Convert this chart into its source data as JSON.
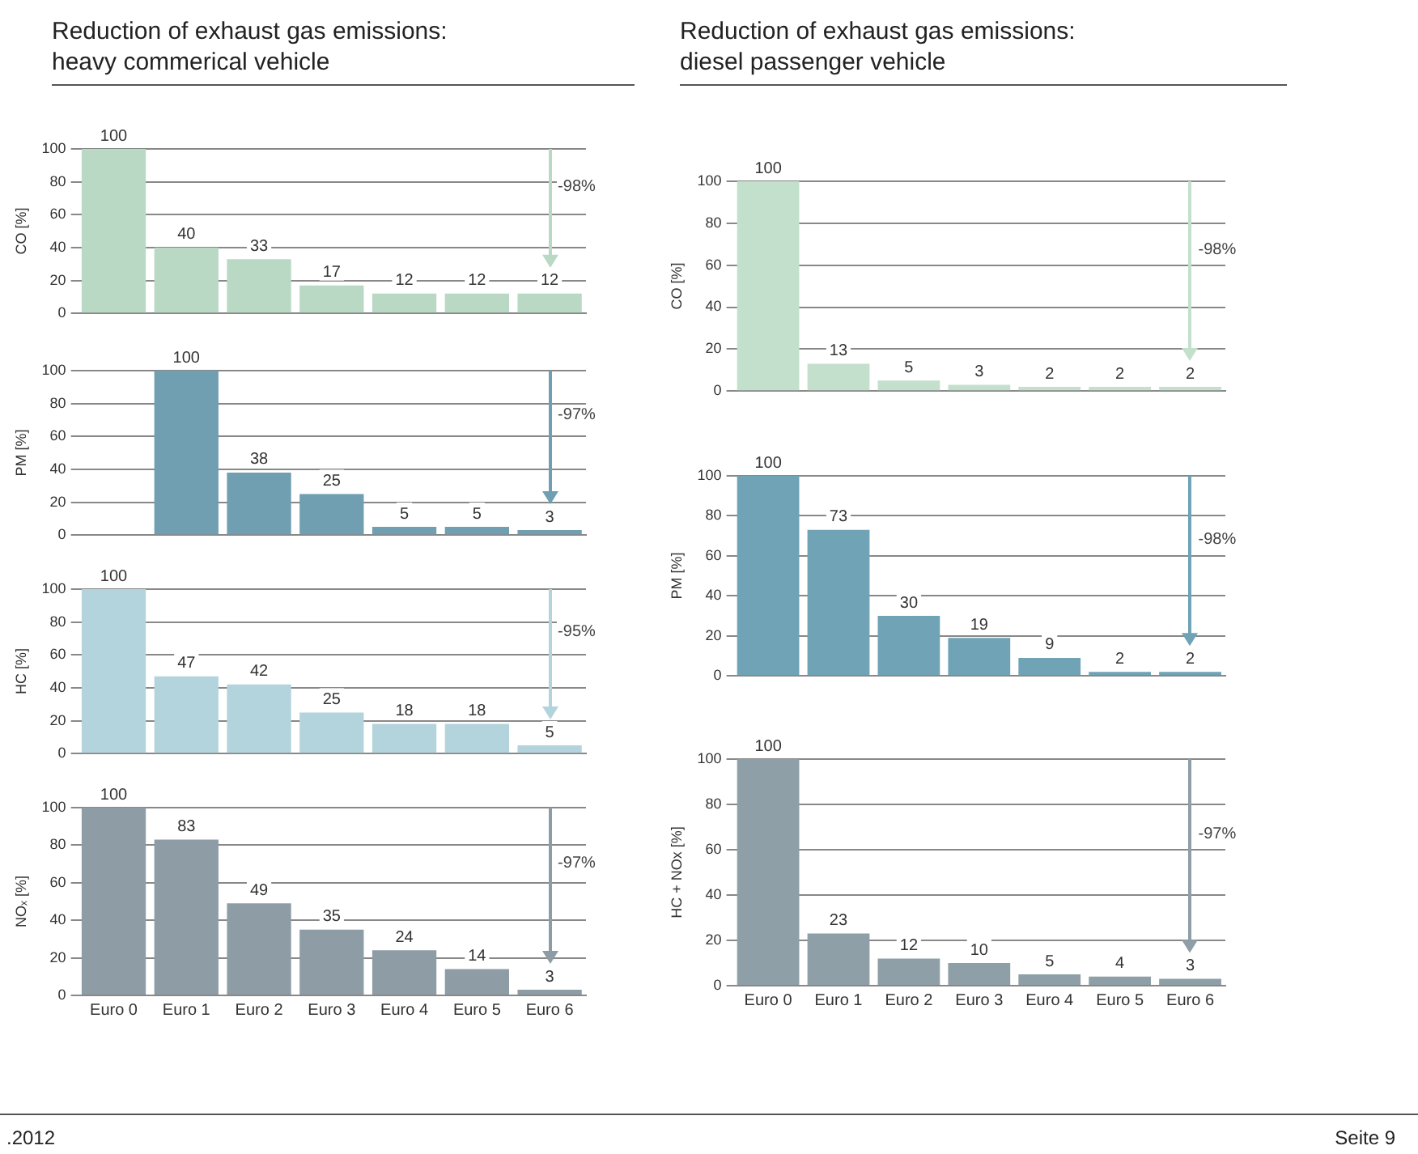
{
  "chart_data": [
    {
      "type": "bar",
      "title": "Reduction of exhaust gas emissions:\nheavy commerical vehicle",
      "ylabel": "CO [%]",
      "categories": [
        null,
        null,
        null,
        null,
        null,
        null,
        null
      ],
      "values": [
        100,
        40,
        33,
        17,
        12,
        12,
        12
      ],
      "color": "#b9d9c4",
      "ylim": [
        0,
        100
      ],
      "yticks": [
        0,
        20,
        40,
        60,
        80,
        100
      ],
      "grid": "y",
      "data_labels": true,
      "tick_labels": "y",
      "annotations": [
        "-98%"
      ]
    },
    {
      "type": "bar",
      "ylabel": "PM [%]",
      "categories": [
        null,
        null,
        null,
        null,
        null,
        null,
        null
      ],
      "values": [
        null,
        100,
        38,
        25,
        5,
        5,
        3
      ],
      "color": "#6f9fb0",
      "ylim": [
        0,
        100
      ],
      "yticks": [
        0,
        20,
        40,
        60,
        80,
        100
      ],
      "grid": "y",
      "data_labels": true,
      "tick_labels": "y",
      "annotations": [
        "-97%"
      ]
    },
    {
      "type": "bar",
      "ylabel": "HC [%]",
      "categories": [
        null,
        null,
        null,
        null,
        null,
        null,
        null
      ],
      "values": [
        100,
        47,
        42,
        25,
        18,
        18,
        5
      ],
      "color": "#b4d4dd",
      "ylim": [
        0,
        100
      ],
      "yticks": [
        0,
        20,
        40,
        60,
        80,
        100
      ],
      "grid": "y",
      "data_labels": true,
      "tick_labels": "y",
      "annotations": [
        "-95%"
      ]
    },
    {
      "type": "bar",
      "ylabel": "NOₓ [%]",
      "categories": [
        "Euro 0",
        "Euro 1",
        "Euro 2",
        "Euro 3",
        "Euro 4",
        "Euro 5",
        "Euro 6"
      ],
      "values": [
        100,
        83,
        49,
        35,
        24,
        14,
        3
      ],
      "color": "#8e9da5",
      "ylim": [
        0,
        100
      ],
      "yticks": [
        0,
        20,
        40,
        60,
        80,
        100
      ],
      "grid": "y",
      "data_labels": true,
      "annotations": [
        "-97%"
      ]
    },
    {
      "type": "bar",
      "title": "Reduction of exhaust gas emissions:\ndiesel passenger vehicle",
      "ylabel": "CO [%]",
      "categories": [
        null,
        null,
        null,
        null,
        null,
        null,
        null
      ],
      "values": [
        100,
        13,
        5,
        3,
        2,
        2,
        2
      ],
      "color": "#c3e0cd",
      "ylim": [
        0,
        100
      ],
      "yticks": [
        0,
        20,
        40,
        60,
        80,
        100
      ],
      "grid": "y",
      "data_labels": true,
      "tick_labels": "y",
      "annotations": [
        "-98%"
      ]
    },
    {
      "type": "bar",
      "ylabel": "PM [%]",
      "categories": [
        null,
        null,
        null,
        null,
        null,
        null,
        null
      ],
      "values": [
        100,
        73,
        30,
        19,
        9,
        2,
        2
      ],
      "color": "#6fa3b5",
      "ylim": [
        0,
        100
      ],
      "yticks": [
        0,
        20,
        40,
        60,
        80,
        100
      ],
      "grid": "y",
      "data_labels": true,
      "tick_labels": "y",
      "annotations": [
        "-98%"
      ]
    },
    {
      "type": "bar",
      "ylabel": "HC + NOx [%]",
      "categories": [
        "Euro 0",
        "Euro 1",
        "Euro 2",
        "Euro 3",
        "Euro 4",
        "Euro 5",
        "Euro 6"
      ],
      "values": [
        100,
        23,
        12,
        10,
        5,
        4,
        3
      ],
      "color": "#8f9fa7",
      "ylim": [
        0,
        100
      ],
      "yticks": [
        0,
        20,
        40,
        60,
        80,
        100
      ],
      "grid": "y",
      "data_labels": true,
      "annotations": [
        "-97%"
      ]
    },
    {
      "type": "other",
      "annotations": [
        ".2012",
        "Seite 9"
      ]
    }
  ]
}
